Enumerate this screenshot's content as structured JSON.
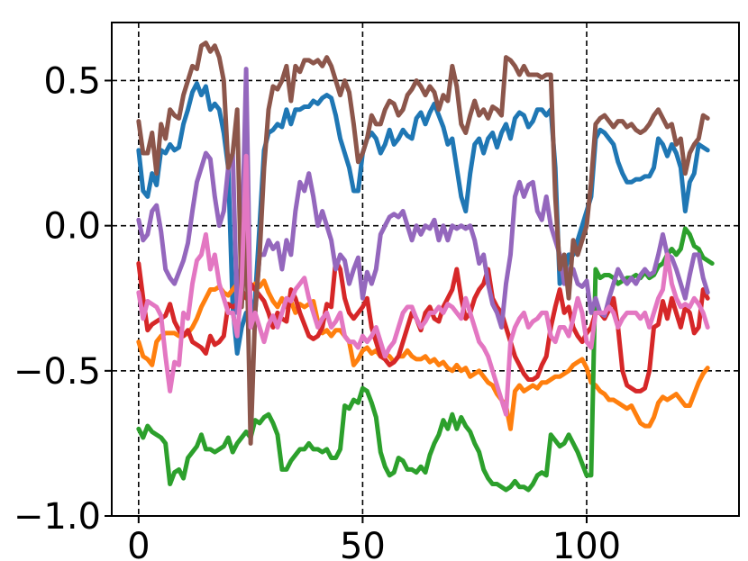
{
  "chart_data": {
    "type": "line",
    "title": "",
    "xlabel": "",
    "ylabel": "",
    "xlim": [
      -6,
      134
    ],
    "ylim": [
      -1.0,
      0.7
    ],
    "xticks": [
      0,
      50,
      100
    ],
    "yticks": [
      -1.0,
      -0.5,
      0.0,
      0.5
    ],
    "xtick_labels": [
      "0",
      "50",
      "100"
    ],
    "ytick_labels": [
      "−1.0",
      "−0.5",
      "0.0",
      "0.5"
    ],
    "grid": true,
    "legend": false,
    "x_start": 0,
    "x_step": 1,
    "series": [
      {
        "color": "#1f77b4",
        "values": [
          0.26,
          0.12,
          0.1,
          0.18,
          0.14,
          0.26,
          0.25,
          0.28,
          0.26,
          0.27,
          0.35,
          0.4,
          0.46,
          0.49,
          0.45,
          0.48,
          0.4,
          0.42,
          0.4,
          0.32,
          0.2,
          -0.28,
          -0.44,
          -0.35,
          -0.3,
          -0.32,
          -0.25,
          0.0,
          0.26,
          0.32,
          0.33,
          0.35,
          0.34,
          0.4,
          0.35,
          0.4,
          0.4,
          0.41,
          0.41,
          0.43,
          0.42,
          0.44,
          0.45,
          0.44,
          0.38,
          0.3,
          0.25,
          0.2,
          0.12,
          0.12,
          0.25,
          0.3,
          0.32,
          0.3,
          0.25,
          0.28,
          0.33,
          0.28,
          0.3,
          0.33,
          0.31,
          0.3,
          0.37,
          0.39,
          0.35,
          0.39,
          0.42,
          0.38,
          0.34,
          0.28,
          0.3,
          0.2,
          0.1,
          0.05,
          0.18,
          0.28,
          0.3,
          0.25,
          0.3,
          0.32,
          0.27,
          0.32,
          0.35,
          0.3,
          0.37,
          0.39,
          0.38,
          0.34,
          0.36,
          0.4,
          0.4,
          0.38,
          0.4,
          0.2,
          -0.2,
          -0.17,
          -0.1,
          -0.1,
          -0.05,
          0.0,
          0.05,
          0.1,
          0.3,
          0.33,
          0.32,
          0.3,
          0.28,
          0.22,
          0.18,
          0.15,
          0.15,
          0.16,
          0.16,
          0.17,
          0.17,
          0.2,
          0.3,
          0.28,
          0.24,
          0.28,
          0.25,
          0.2,
          0.05,
          0.15,
          0.18,
          0.28,
          0.27,
          0.26
        ]
      },
      {
        "color": "#ff7f0e",
        "values": [
          -0.4,
          -0.45,
          -0.46,
          -0.48,
          -0.4,
          -0.38,
          -0.37,
          -0.37,
          -0.37,
          -0.38,
          -0.38,
          -0.37,
          -0.35,
          -0.32,
          -0.28,
          -0.25,
          -0.22,
          -0.22,
          -0.21,
          -0.23,
          -0.24,
          -0.22,
          -0.2,
          -0.19,
          -0.18,
          -0.22,
          -0.2,
          -0.21,
          -0.19,
          -0.23,
          -0.26,
          -0.28,
          -0.25,
          -0.28,
          -0.26,
          -0.3,
          -0.27,
          -0.28,
          -0.27,
          -0.26,
          -0.33,
          -0.37,
          -0.36,
          -0.38,
          -0.36,
          -0.36,
          -0.38,
          -0.4,
          -0.48,
          -0.46,
          -0.43,
          -0.42,
          -0.44,
          -0.43,
          -0.45,
          -0.44,
          -0.45,
          -0.47,
          -0.45,
          -0.45,
          -0.43,
          -0.45,
          -0.46,
          -0.46,
          -0.45,
          -0.47,
          -0.46,
          -0.48,
          -0.47,
          -0.49,
          -0.5,
          -0.48,
          -0.5,
          -0.49,
          -0.52,
          -0.51,
          -0.5,
          -0.52,
          -0.54,
          -0.55,
          -0.58,
          -0.6,
          -0.62,
          -0.7,
          -0.57,
          -0.55,
          -0.57,
          -0.56,
          -0.55,
          -0.56,
          -0.54,
          -0.54,
          -0.53,
          -0.52,
          -0.52,
          -0.51,
          -0.5,
          -0.48,
          -0.47,
          -0.46,
          -0.49,
          -0.54,
          -0.55,
          -0.57,
          -0.58,
          -0.6,
          -0.6,
          -0.61,
          -0.62,
          -0.63,
          -0.62,
          -0.65,
          -0.68,
          -0.69,
          -0.69,
          -0.66,
          -0.61,
          -0.59,
          -0.6,
          -0.59,
          -0.58,
          -0.6,
          -0.62,
          -0.62,
          -0.58,
          -0.54,
          -0.51,
          -0.49
        ]
      },
      {
        "color": "#2ca02c",
        "values": [
          -0.7,
          -0.73,
          -0.69,
          -0.71,
          -0.72,
          -0.73,
          -0.75,
          -0.89,
          -0.85,
          -0.84,
          -0.87,
          -0.8,
          -0.78,
          -0.76,
          -0.72,
          -0.77,
          -0.77,
          -0.78,
          -0.77,
          -0.76,
          -0.73,
          -0.78,
          -0.75,
          -0.73,
          -0.71,
          -0.73,
          -0.67,
          -0.68,
          -0.66,
          -0.65,
          -0.68,
          -0.72,
          -0.84,
          -0.84,
          -0.81,
          -0.79,
          -0.77,
          -0.77,
          -0.75,
          -0.77,
          -0.77,
          -0.78,
          -0.77,
          -0.8,
          -0.8,
          -0.77,
          -0.62,
          -0.63,
          -0.6,
          -0.61,
          -0.56,
          -0.57,
          -0.61,
          -0.66,
          -0.78,
          -0.83,
          -0.86,
          -0.85,
          -0.8,
          -0.81,
          -0.84,
          -0.84,
          -0.85,
          -0.83,
          -0.85,
          -0.79,
          -0.75,
          -0.72,
          -0.67,
          -0.7,
          -0.65,
          -0.7,
          -0.66,
          -0.69,
          -0.71,
          -0.75,
          -0.78,
          -0.84,
          -0.87,
          -0.89,
          -0.89,
          -0.9,
          -0.91,
          -0.9,
          -0.88,
          -0.9,
          -0.9,
          -0.91,
          -0.89,
          -0.86,
          -0.85,
          -0.86,
          -0.72,
          -0.74,
          -0.76,
          -0.75,
          -0.72,
          -0.75,
          -0.78,
          -0.82,
          -0.86,
          -0.86,
          -0.15,
          -0.18,
          -0.17,
          -0.17,
          -0.18,
          -0.2,
          -0.19,
          -0.18,
          -0.18,
          -0.17,
          -0.18,
          -0.16,
          -0.18,
          -0.17,
          -0.14,
          -0.13,
          -0.1,
          -0.08,
          -0.1,
          -0.08,
          -0.01,
          -0.03,
          -0.07,
          -0.08,
          -0.11,
          -0.12,
          -0.13
        ]
      },
      {
        "color": "#d62728",
        "values": [
          -0.13,
          -0.25,
          -0.36,
          -0.34,
          -0.33,
          -0.32,
          -0.31,
          -0.27,
          -0.33,
          -0.36,
          -0.38,
          -0.36,
          -0.4,
          -0.41,
          -0.42,
          -0.44,
          -0.38,
          -0.41,
          -0.4,
          -0.38,
          -0.27,
          -0.28,
          -0.27,
          -0.22,
          -0.25,
          -0.2,
          -0.22,
          -0.24,
          -0.26,
          -0.3,
          -0.35,
          -0.3,
          -0.32,
          -0.33,
          -0.22,
          -0.25,
          -0.3,
          -0.34,
          -0.38,
          -0.39,
          -0.38,
          -0.35,
          -0.27,
          -0.28,
          -0.12,
          -0.15,
          -0.25,
          -0.3,
          -0.32,
          -0.3,
          -0.28,
          -0.25,
          -0.35,
          -0.4,
          -0.45,
          -0.46,
          -0.48,
          -0.47,
          -0.45,
          -0.4,
          -0.35,
          -0.3,
          -0.32,
          -0.36,
          -0.3,
          -0.28,
          -0.32,
          -0.33,
          -0.28,
          -0.25,
          -0.22,
          -0.15,
          -0.25,
          -0.32,
          -0.3,
          -0.25,
          -0.22,
          -0.2,
          -0.15,
          -0.25,
          -0.28,
          -0.3,
          -0.35,
          -0.4,
          -0.45,
          -0.48,
          -0.51,
          -0.53,
          -0.53,
          -0.52,
          -0.48,
          -0.45,
          -0.35,
          -0.28,
          -0.22,
          -0.3,
          -0.28,
          -0.35,
          -0.38,
          -0.4,
          -0.37,
          -0.35,
          -0.3,
          -0.3,
          -0.32,
          -0.29,
          -0.25,
          -0.35,
          -0.5,
          -0.55,
          -0.56,
          -0.57,
          -0.57,
          -0.56,
          -0.5,
          -0.35,
          -0.34,
          -0.26,
          -0.32,
          -0.25,
          -0.3,
          -0.35,
          -0.28,
          -0.3,
          -0.37,
          -0.35,
          -0.22,
          -0.25
        ]
      },
      {
        "color": "#9467bd",
        "values": [
          0.02,
          -0.05,
          -0.03,
          0.05,
          0.07,
          -0.02,
          -0.15,
          -0.18,
          -0.2,
          -0.16,
          -0.12,
          -0.06,
          0.05,
          0.15,
          0.2,
          0.25,
          0.23,
          0.1,
          0.0,
          0.05,
          0.2,
          0.25,
          -0.3,
          -0.1,
          0.54,
          -0.35,
          -0.3,
          -0.1,
          -0.1,
          -0.05,
          -0.08,
          -0.06,
          -0.15,
          -0.05,
          -0.1,
          0.05,
          0.15,
          0.12,
          0.18,
          0.1,
          0.0,
          0.05,
          0.0,
          -0.05,
          -0.15,
          -0.1,
          -0.12,
          -0.2,
          -0.15,
          -0.11,
          -0.25,
          -0.16,
          -0.2,
          -0.15,
          -0.03,
          0.0,
          0.03,
          0.04,
          0.03,
          0.05,
          0.0,
          -0.05,
          0.0,
          -0.03,
          0.0,
          -0.01,
          0.02,
          -0.05,
          0.0,
          -0.05,
          0.0,
          -0.01,
          0.0,
          -0.01,
          0.0,
          -0.05,
          -0.13,
          -0.1,
          -0.2,
          -0.27,
          -0.3,
          -0.35,
          -0.2,
          -0.1,
          0.1,
          0.15,
          0.1,
          0.14,
          0.15,
          0.05,
          0.02,
          0.1,
          0.0,
          -0.05,
          -0.1,
          -0.2,
          -0.15,
          -0.15,
          -0.2,
          -0.21,
          -0.19,
          -0.3,
          -0.25,
          -0.3,
          -0.31,
          -0.25,
          -0.2,
          -0.15,
          -0.18,
          -0.2,
          -0.18,
          -0.2,
          -0.17,
          -0.15,
          -0.17,
          -0.16,
          -0.1,
          -0.03,
          -0.1,
          -0.11,
          -0.15,
          -0.2,
          -0.25,
          -0.17,
          -0.1,
          -0.1,
          -0.18,
          -0.23
        ]
      },
      {
        "color": "#8c564b",
        "values": [
          0.36,
          0.25,
          0.25,
          0.32,
          0.18,
          0.35,
          0.3,
          0.4,
          0.38,
          0.37,
          0.45,
          0.5,
          0.55,
          0.54,
          0.62,
          0.63,
          0.6,
          0.62,
          0.58,
          0.5,
          0.2,
          0.25,
          0.4,
          -0.28,
          0.0,
          -0.75,
          -0.3,
          -0.1,
          0.2,
          0.4,
          0.48,
          0.47,
          0.5,
          0.55,
          0.43,
          0.55,
          0.53,
          0.57,
          0.57,
          0.56,
          0.57,
          0.55,
          0.58,
          0.55,
          0.5,
          0.45,
          0.5,
          0.46,
          0.35,
          0.22,
          0.25,
          0.3,
          0.38,
          0.35,
          0.35,
          0.4,
          0.43,
          0.42,
          0.38,
          0.4,
          0.45,
          0.47,
          0.5,
          0.48,
          0.45,
          0.48,
          0.46,
          0.4,
          0.45,
          0.43,
          0.55,
          0.48,
          0.35,
          0.32,
          0.38,
          0.43,
          0.38,
          0.4,
          0.37,
          0.41,
          0.4,
          0.38,
          0.58,
          0.57,
          0.55,
          0.52,
          0.55,
          0.52,
          0.52,
          0.52,
          0.51,
          0.52,
          0.52,
          0.1,
          -0.15,
          -0.1,
          -0.25,
          -0.05,
          -0.1,
          -0.05,
          0.0,
          0.15,
          0.35,
          0.37,
          0.38,
          0.36,
          0.34,
          0.36,
          0.36,
          0.34,
          0.35,
          0.33,
          0.32,
          0.33,
          0.35,
          0.38,
          0.4,
          0.37,
          0.34,
          0.35,
          0.28,
          0.3,
          0.18,
          0.25,
          0.28,
          0.3,
          0.38,
          0.37
        ]
      },
      {
        "color": "#e377c2",
        "values": [
          -0.23,
          -0.32,
          -0.26,
          -0.27,
          -0.28,
          -0.31,
          -0.45,
          -0.57,
          -0.47,
          -0.48,
          -0.3,
          -0.32,
          -0.2,
          -0.12,
          -0.1,
          -0.03,
          -0.15,
          -0.1,
          -0.2,
          -0.25,
          -0.3,
          -0.3,
          -0.38,
          -0.2,
          0.24,
          -0.35,
          -0.3,
          -0.35,
          -0.4,
          -0.34,
          -0.31,
          -0.35,
          -0.3,
          -0.25,
          -0.26,
          -0.22,
          -0.2,
          -0.18,
          -0.25,
          -0.3,
          -0.35,
          -0.32,
          -0.3,
          -0.35,
          -0.33,
          -0.3,
          -0.38,
          -0.4,
          -0.4,
          -0.42,
          -0.38,
          -0.4,
          -0.38,
          -0.35,
          -0.4,
          -0.45,
          -0.42,
          -0.4,
          -0.35,
          -0.3,
          -0.28,
          -0.28,
          -0.32,
          -0.35,
          -0.33,
          -0.3,
          -0.3,
          -0.28,
          -0.3,
          -0.27,
          -0.28,
          -0.3,
          -0.32,
          -0.25,
          -0.3,
          -0.35,
          -0.4,
          -0.42,
          -0.45,
          -0.5,
          -0.55,
          -0.6,
          -0.65,
          -0.4,
          -0.35,
          -0.32,
          -0.3,
          -0.35,
          -0.33,
          -0.32,
          -0.3,
          -0.3,
          -0.38,
          -0.4,
          -0.35,
          -0.35,
          -0.38,
          -0.32,
          -0.25,
          -0.3,
          -0.4,
          -0.42,
          -0.3,
          -0.3,
          -0.3,
          -0.28,
          -0.3,
          -0.35,
          -0.32,
          -0.3,
          -0.3,
          -0.3,
          -0.32,
          -0.3,
          -0.35,
          -0.3,
          -0.25,
          -0.22,
          -0.1,
          -0.2,
          -0.25,
          -0.28,
          -0.27,
          -0.28,
          -0.25,
          -0.27,
          -0.3,
          -0.35
        ]
      }
    ]
  }
}
